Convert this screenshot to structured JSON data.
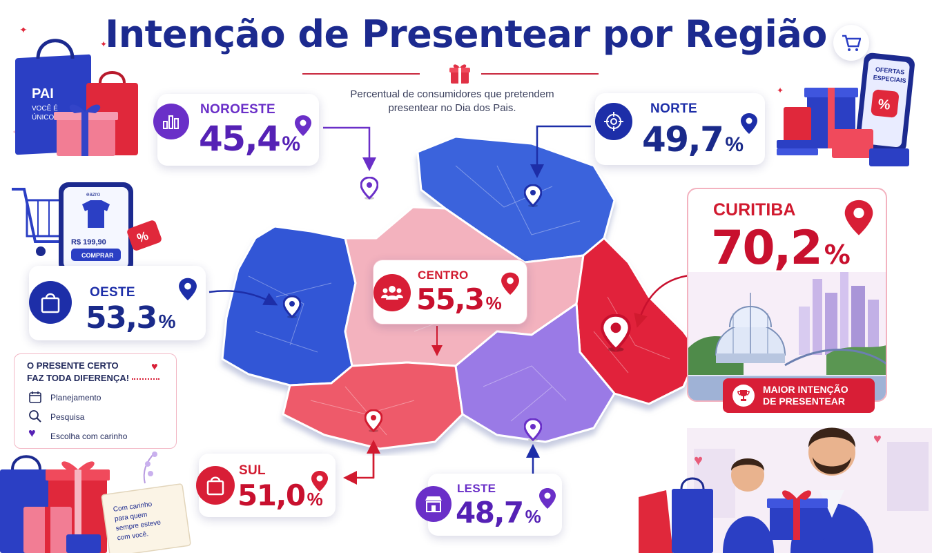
{
  "header": {
    "title": "Intenção de Presentear por Região",
    "subtitle_line1": "Percentual de consumidores que pretendem",
    "subtitle_line2": "presentear no Dia dos Pais."
  },
  "regions": {
    "noroeste": {
      "name": "NOROESTE",
      "value": "45,4",
      "unit": "%",
      "icon": "bar-chart-icon",
      "color": "#6a2fc8"
    },
    "norte": {
      "name": "NORTE",
      "value": "49,7",
      "unit": "%",
      "icon": "target-icon",
      "color": "#1d2ea8"
    },
    "oeste": {
      "name": "OESTE",
      "value": "53,3",
      "unit": "%",
      "icon": "shopping-bag-icon",
      "color": "#1d2ea8"
    },
    "centro": {
      "name": "CENTRO",
      "value": "55,3",
      "unit": "%",
      "icon": "people-icon",
      "color": "#d11a2f"
    },
    "sul": {
      "name": "SUL",
      "value": "51,0",
      "unit": "%",
      "icon": "shopping-bag-icon",
      "color": "#d11a2f"
    },
    "leste": {
      "name": "LESTE",
      "value": "48,7",
      "unit": "%",
      "icon": "store-icon",
      "color": "#6a2fc8"
    }
  },
  "curitiba": {
    "name": "CURITIBA",
    "value": "70,2",
    "unit": "%",
    "badge_line1": "MAIOR INTENÇÃO",
    "badge_line2": "DE PRESENTEAR",
    "color": "#c8102e"
  },
  "tips": {
    "title_line1": "O PRESENTE CERTO",
    "title_line2": "FAZ TODA DIFERENÇA!",
    "items": [
      "Planejamento",
      "Pesquisa",
      "Escolha com carinho"
    ]
  },
  "decor": {
    "bag_text": [
      "PAI",
      "VOCÊ É",
      "ÚNICO"
    ],
    "phone_price": "R$ 199,90",
    "phone_button": "COMPRAR",
    "phone_brand": "eazro",
    "offers_line1": "OFERTAS",
    "offers_line2": "ESPECIAIS",
    "note_text": [
      "Com carinho",
      "para quem",
      "sempre esteve",
      "com você."
    ]
  },
  "colors": {
    "purple": "#8f6be0",
    "blue": "#2f55d4",
    "pink": "#f2a7b4",
    "red": "#e1243a",
    "coral": "#ee5a6a"
  }
}
